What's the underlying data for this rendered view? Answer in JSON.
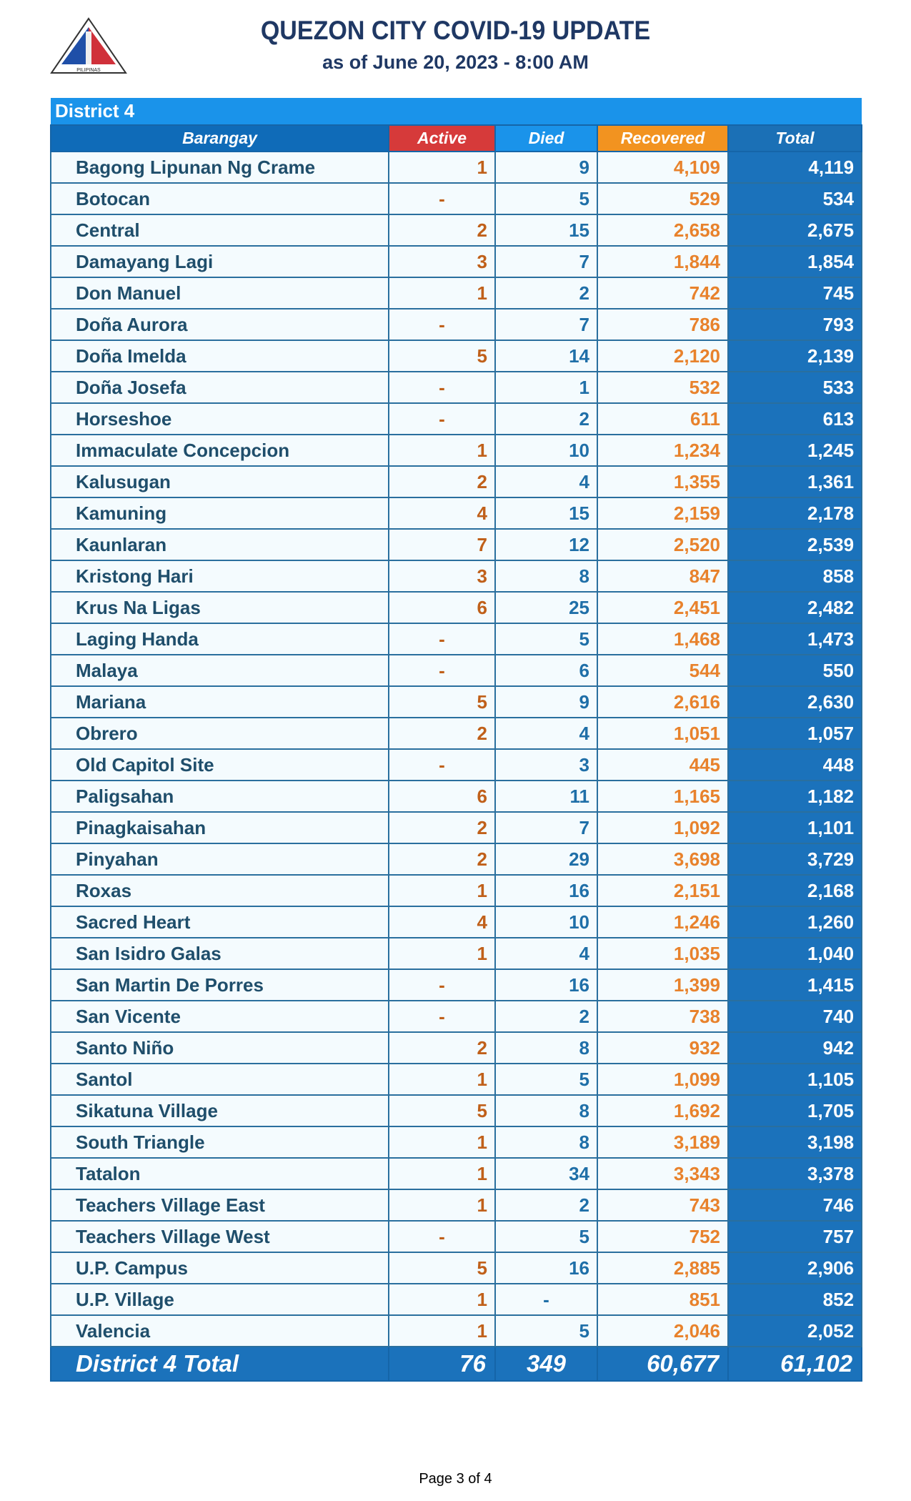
{
  "header": {
    "title": "QUEZON CITY COVID-19 UPDATE",
    "subtitle": "as of June 20, 2023 - 8:00 AM",
    "logo_text": "LUNGSOD QUEZON PILIPINAS"
  },
  "table": {
    "district": "District 4",
    "columns": [
      "Barangay",
      "Active",
      "Died",
      "Recovered",
      "Total"
    ],
    "column_colors": {
      "active": "#d63a3a",
      "died": "#1a93ea",
      "recovered": "#f29320",
      "total": "#1b70b6"
    },
    "rows": [
      [
        "Bagong Lipunan Ng Crame",
        "1",
        "9",
        "4,109",
        "4,119"
      ],
      [
        "Botocan",
        "-",
        "5",
        "529",
        "534"
      ],
      [
        "Central",
        "2",
        "15",
        "2,658",
        "2,675"
      ],
      [
        "Damayang Lagi",
        "3",
        "7",
        "1,844",
        "1,854"
      ],
      [
        "Don Manuel",
        "1",
        "2",
        "742",
        "745"
      ],
      [
        "Doña Aurora",
        "-",
        "7",
        "786",
        "793"
      ],
      [
        "Doña Imelda",
        "5",
        "14",
        "2,120",
        "2,139"
      ],
      [
        "Doña Josefa",
        "-",
        "1",
        "532",
        "533"
      ],
      [
        "Horseshoe",
        "-",
        "2",
        "611",
        "613"
      ],
      [
        "Immaculate Concepcion",
        "1",
        "10",
        "1,234",
        "1,245"
      ],
      [
        "Kalusugan",
        "2",
        "4",
        "1,355",
        "1,361"
      ],
      [
        "Kamuning",
        "4",
        "15",
        "2,159",
        "2,178"
      ],
      [
        "Kaunlaran",
        "7",
        "12",
        "2,520",
        "2,539"
      ],
      [
        "Kristong Hari",
        "3",
        "8",
        "847",
        "858"
      ],
      [
        "Krus Na Ligas",
        "6",
        "25",
        "2,451",
        "2,482"
      ],
      [
        "Laging Handa",
        "-",
        "5",
        "1,468",
        "1,473"
      ],
      [
        "Malaya",
        "-",
        "6",
        "544",
        "550"
      ],
      [
        "Mariana",
        "5",
        "9",
        "2,616",
        "2,630"
      ],
      [
        "Obrero",
        "2",
        "4",
        "1,051",
        "1,057"
      ],
      [
        "Old Capitol Site",
        "-",
        "3",
        "445",
        "448"
      ],
      [
        "Paligsahan",
        "6",
        "11",
        "1,165",
        "1,182"
      ],
      [
        "Pinagkaisahan",
        "2",
        "7",
        "1,092",
        "1,101"
      ],
      [
        "Pinyahan",
        "2",
        "29",
        "3,698",
        "3,729"
      ],
      [
        "Roxas",
        "1",
        "16",
        "2,151",
        "2,168"
      ],
      [
        "Sacred Heart",
        "4",
        "10",
        "1,246",
        "1,260"
      ],
      [
        "San Isidro Galas",
        "1",
        "4",
        "1,035",
        "1,040"
      ],
      [
        "San Martin De Porres",
        "-",
        "16",
        "1,399",
        "1,415"
      ],
      [
        "San Vicente",
        "-",
        "2",
        "738",
        "740"
      ],
      [
        "Santo Niño",
        "2",
        "8",
        "932",
        "942"
      ],
      [
        "Santol",
        "1",
        "5",
        "1,099",
        "1,105"
      ],
      [
        "Sikatuna Village",
        "5",
        "8",
        "1,692",
        "1,705"
      ],
      [
        "South Triangle",
        "1",
        "8",
        "3,189",
        "3,198"
      ],
      [
        "Tatalon",
        "1",
        "34",
        "3,343",
        "3,378"
      ],
      [
        "Teachers Village East",
        "1",
        "2",
        "743",
        "746"
      ],
      [
        "Teachers Village West",
        "-",
        "5",
        "752",
        "757"
      ],
      [
        "U.P. Campus",
        "5",
        "16",
        "2,885",
        "2,906"
      ],
      [
        "U.P. Village",
        "1",
        "-",
        "851",
        "852"
      ],
      [
        "Valencia",
        "1",
        "5",
        "2,046",
        "2,052"
      ]
    ],
    "total": [
      "District 4 Total",
      "76",
      "349",
      "60,677",
      "61,102"
    ]
  },
  "footer": {
    "page": "Page 3 of 4"
  }
}
